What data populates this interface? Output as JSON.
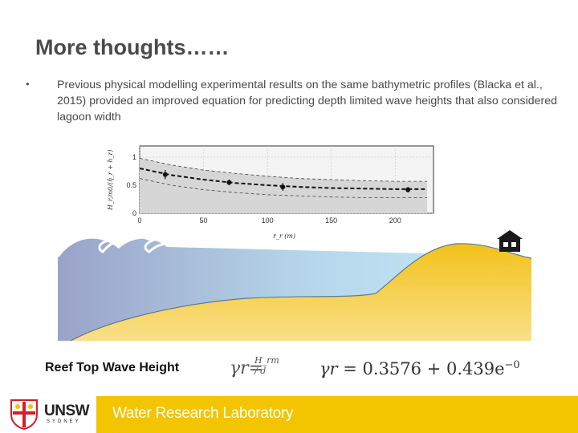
{
  "slide": {
    "title": "More thoughts……",
    "bullet_marker": "•",
    "bullet_text": "Previous physical modelling experimental results on the same bathymetric profiles (Blacka et al., 2015) provided an improved equation for predicting depth limited wave heights that also considered lagoon width"
  },
  "chart_data": {
    "type": "line",
    "ylabel": "H_r,m0/(η̄_r + h_r)",
    "xlabel": "r_r (m)",
    "x_ticks": [
      "0",
      "50",
      "100",
      "150",
      "200"
    ],
    "y_ticks": [
      "0",
      "0.5",
      "1"
    ],
    "xlim": [
      0,
      230
    ],
    "ylim": [
      0,
      1.2
    ],
    "grid": true,
    "series": [
      {
        "style": "thick-dashed",
        "x": [
          0,
          25,
          50,
          75,
          100,
          125,
          150,
          175,
          200,
          225
        ],
        "y": [
          0.8,
          0.68,
          0.6,
          0.54,
          0.5,
          0.47,
          0.45,
          0.44,
          0.43,
          0.43
        ]
      },
      {
        "style": "thin-dashed-upper",
        "x": [
          0,
          25,
          50,
          75,
          100,
          125,
          150,
          175,
          200,
          225
        ],
        "y": [
          0.98,
          0.86,
          0.77,
          0.71,
          0.66,
          0.62,
          0.6,
          0.58,
          0.57,
          0.57
        ]
      },
      {
        "style": "thin-dashed-lower",
        "x": [
          0,
          25,
          50,
          75,
          100,
          125,
          150,
          175,
          200,
          225
        ],
        "y": [
          0.62,
          0.5,
          0.42,
          0.37,
          0.33,
          0.31,
          0.29,
          0.28,
          0.28,
          0.28
        ]
      }
    ],
    "points": [
      {
        "x": 20,
        "y": 0.69,
        "err": 0.08
      },
      {
        "x": 70,
        "y": 0.55,
        "err": 0.05
      },
      {
        "x": 112,
        "y": 0.47,
        "err": 0.07
      },
      {
        "x": 210,
        "y": 0.42,
        "err": 0.05
      }
    ],
    "colors": {
      "band": "#d8d8d8",
      "line": "#111111"
    }
  },
  "scene": {
    "colors": {
      "water_left": "#9aa3c8",
      "water_right": "#bfe3f2",
      "sand": "#f2c21a",
      "sand_light": "#f7d35c",
      "seabed": "#5a7a9a",
      "house": "#1a1a1a"
    }
  },
  "caption": "Reef Top Wave Height",
  "equation_small": {
    "lhs": "γr=",
    "fraction": "H_rm / d"
  },
  "equation_main": {
    "lhs": "γr",
    "rhs": " = 0.3576 + 0.439e",
    "exponent": "−0"
  },
  "footer": {
    "logo_text": "UNSW",
    "logo_subtext": "SYDNEY",
    "lab_name": "Water Research Laboratory",
    "colors": {
      "band": "#f3c400"
    }
  }
}
